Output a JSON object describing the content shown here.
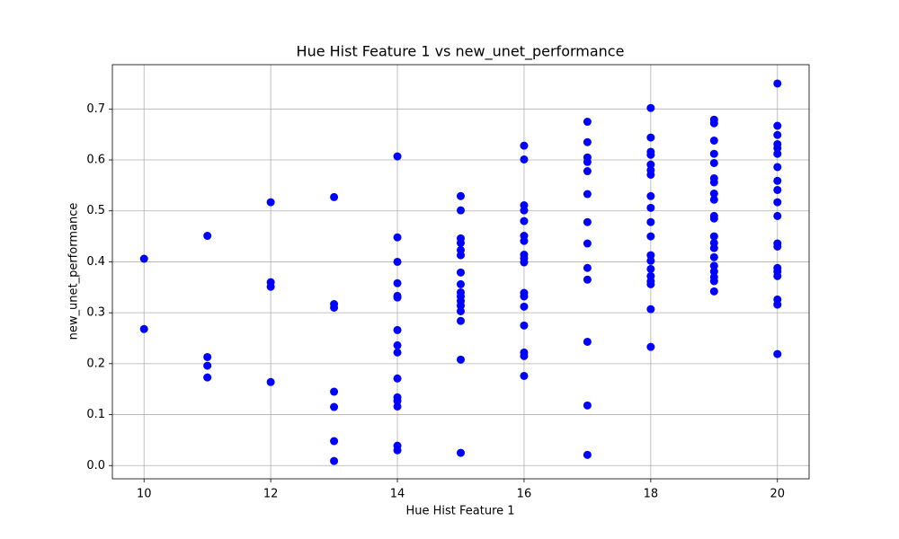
{
  "chart_data": {
    "type": "scatter",
    "title": "Hue Hist Feature 1 vs new_unet_performance",
    "xlabel": "Hue Hist Feature 1",
    "ylabel": "new_unet_performance",
    "color": "#0000ff",
    "grid": true,
    "xlim": [
      9.5,
      20.5
    ],
    "ylim": [
      -0.026,
      0.787
    ],
    "xticks": [
      10,
      12,
      14,
      16,
      18,
      20
    ],
    "yticks": [
      {
        "value": 0,
        "label": "0.0"
      },
      0.1,
      0.2,
      0.3,
      0.4,
      0.5,
      0.6,
      0.7
    ],
    "x": [
      10,
      10,
      11,
      11,
      11,
      11,
      12,
      12,
      12,
      12,
      13,
      13,
      13,
      13,
      13,
      13,
      13,
      14,
      14,
      14,
      14,
      14,
      14,
      14,
      14,
      14,
      14,
      14,
      14,
      14,
      14,
      14,
      15,
      15,
      15,
      15,
      15,
      15,
      15,
      15,
      15,
      15,
      15,
      15,
      15,
      15,
      15,
      15,
      16,
      16,
      16,
      16,
      16,
      16,
      16,
      16,
      16,
      16,
      16,
      16,
      16,
      16,
      16,
      16,
      16,
      17,
      17,
      17,
      17,
      17,
      17,
      17,
      17,
      17,
      17,
      17,
      17,
      17,
      18,
      18,
      18,
      18,
      18,
      18,
      18,
      18,
      18,
      18,
      18,
      18,
      18,
      18,
      18,
      18,
      18,
      18,
      18,
      19,
      19,
      19,
      19,
      19,
      19,
      19,
      19,
      19,
      19,
      19,
      19,
      19,
      19,
      19,
      19,
      19,
      19,
      19,
      19,
      20,
      20,
      20,
      20,
      20,
      20,
      20,
      20,
      20,
      20,
      20,
      20,
      20,
      20,
      20,
      20,
      20,
      20,
      20
    ],
    "values": [
      0.406,
      0.268,
      0.451,
      0.213,
      0.196,
      0.173,
      0.517,
      0.36,
      0.351,
      0.164,
      0.527,
      0.317,
      0.31,
      0.145,
      0.115,
      0.048,
      0.009,
      0.607,
      0.448,
      0.4,
      0.358,
      0.333,
      0.33,
      0.266,
      0.236,
      0.222,
      0.171,
      0.134,
      0.127,
      0.116,
      0.039,
      0.03,
      0.529,
      0.501,
      0.446,
      0.437,
      0.423,
      0.413,
      0.379,
      0.356,
      0.34,
      0.332,
      0.323,
      0.314,
      0.303,
      0.284,
      0.208,
      0.025,
      0.628,
      0.601,
      0.511,
      0.501,
      0.48,
      0.451,
      0.441,
      0.414,
      0.407,
      0.399,
      0.339,
      0.332,
      0.312,
      0.275,
      0.222,
      0.215,
      0.176,
      0.675,
      0.635,
      0.605,
      0.596,
      0.578,
      0.533,
      0.478,
      0.436,
      0.388,
      0.365,
      0.243,
      0.118,
      0.021,
      0.702,
      0.644,
      0.616,
      0.61,
      0.591,
      0.58,
      0.571,
      0.529,
      0.506,
      0.478,
      0.45,
      0.413,
      0.402,
      0.386,
      0.372,
      0.362,
      0.356,
      0.307,
      0.233,
      0.679,
      0.672,
      0.638,
      0.612,
      0.594,
      0.564,
      0.556,
      0.534,
      0.522,
      0.49,
      0.485,
      0.45,
      0.437,
      0.427,
      0.409,
      0.392,
      0.381,
      0.37,
      0.362,
      0.342,
      0.75,
      0.667,
      0.649,
      0.631,
      0.623,
      0.612,
      0.586,
      0.559,
      0.541,
      0.517,
      0.49,
      0.436,
      0.43,
      0.388,
      0.381,
      0.372,
      0.326,
      0.316,
      0.219
    ]
  }
}
